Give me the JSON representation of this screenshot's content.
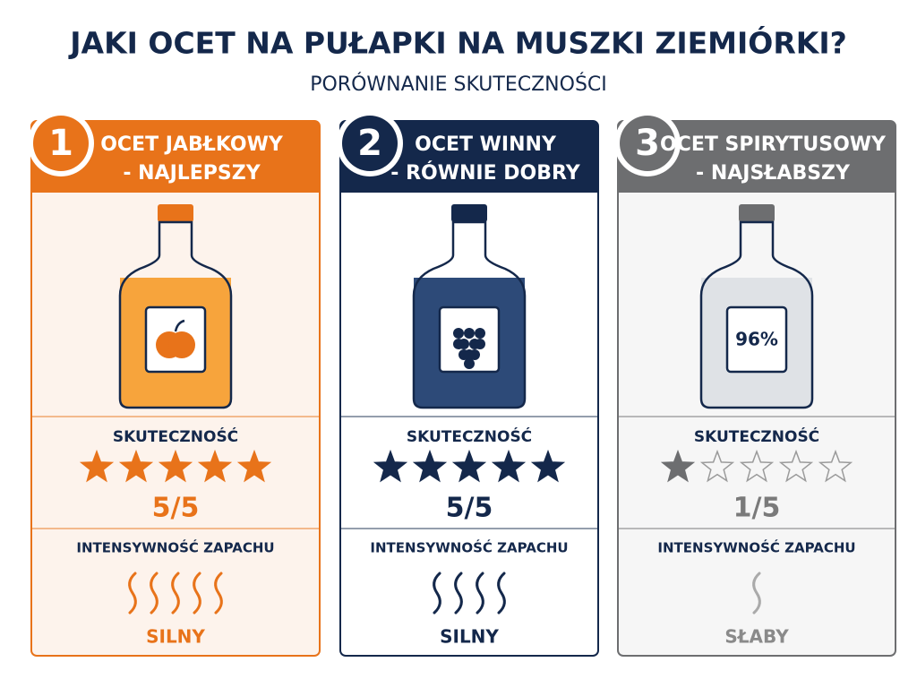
{
  "header": {
    "title": "JAKI OCET NA PUŁAPKI NA MUSZKI ZIEMIÓRKI?",
    "subtitle": "PORÓWNANIE SKUTECZNOŚCI"
  },
  "cards": [
    {
      "number": "1",
      "title_lines": [
        "OCET JABŁKOWY",
        "- NAJLEPSZY"
      ],
      "color": "#e8731a",
      "background": "#fdf3ec",
      "liquid": "#f7a43c",
      "effectiveness_label": "SKUTECZNOŚĆ",
      "score": {
        "value": 5,
        "label": "5/5"
      },
      "smell_label": "INTENSYWNOŚĆ ZAPACHU",
      "smell": "SILNY"
    },
    {
      "number": "2",
      "title_lines": [
        "OCET WINNY",
        "- RÓWNIE DOBRY"
      ],
      "color": "#14284b",
      "background": "#ffffff",
      "liquid": "#2d4a78",
      "effectiveness_label": "SKUTECZNOŚĆ",
      "score": {
        "value": 5,
        "label": "5/5"
      },
      "smell_label": "INTENSYWNOŚĆ ZAPACHU",
      "smell": "SILNY"
    },
    {
      "number": "3",
      "title_lines": [
        "OCET SPIRYTUSOWY",
        "- NAJSŁABSZY"
      ],
      "color": "#6d6e70",
      "background": "#f6f6f6",
      "liquid": "#dfe2e6",
      "effectiveness_label": "SKUTECZNOŚĆ",
      "score": {
        "value": 1,
        "label": "1/5"
      },
      "smell_label": "INTENSYWNOŚĆ ZAPACHU",
      "smell": "SŁABY",
      "bottle_label": "96%"
    }
  ]
}
